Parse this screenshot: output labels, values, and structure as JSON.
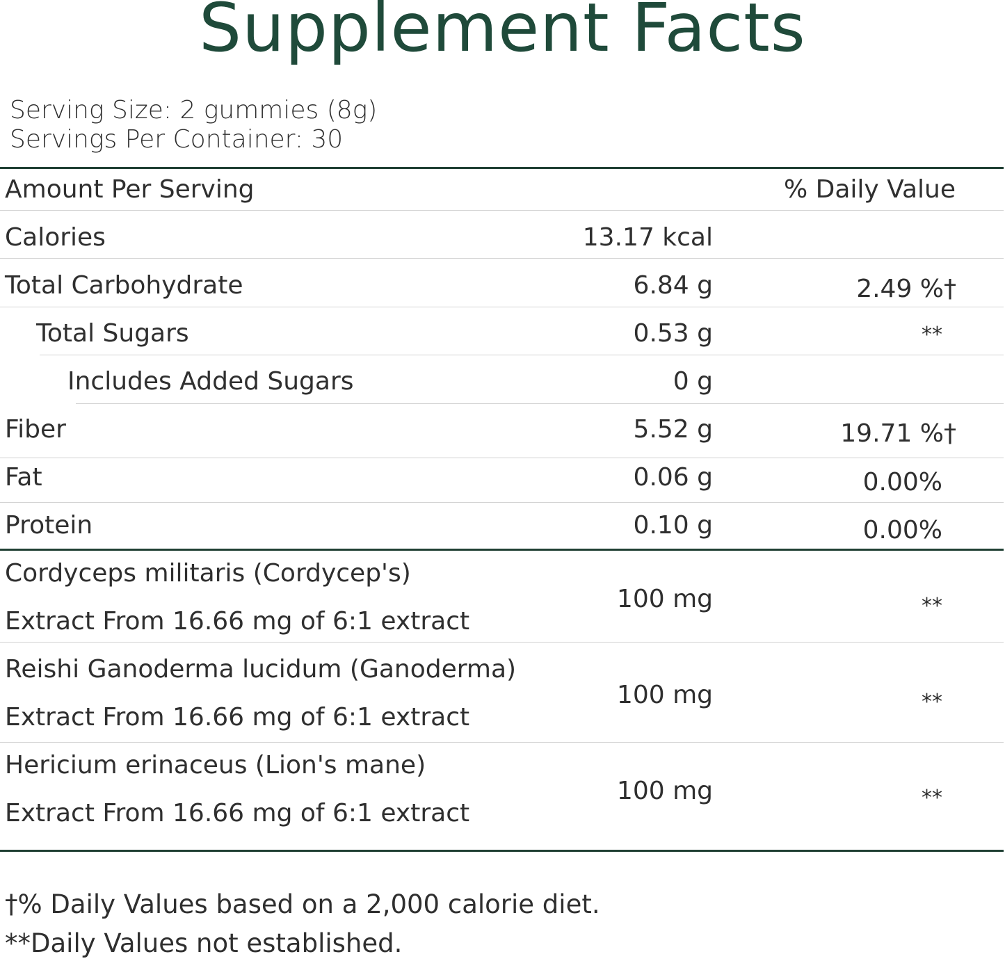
{
  "title": "Supplement Facts",
  "serving": {
    "size": "Serving Size: 2 gummies (8g)",
    "per_container": "Servings Per Container: 30"
  },
  "header": {
    "amount": "Amount Per Serving",
    "dv": "% Daily Value"
  },
  "nutrients": [
    {
      "name": "Calories",
      "amount": "13.17 kcal",
      "dv": ""
    },
    {
      "name": "Total Carbohydrate",
      "amount": "6.84 g",
      "dv": "2.49 %†"
    },
    {
      "name": "Total Sugars",
      "amount": "0.53 g",
      "dv": "**"
    },
    {
      "name": "Includes Added Sugars",
      "amount": "0 g",
      "dv": ""
    },
    {
      "name": "Fiber",
      "amount": "5.52 g",
      "dv": "19.71 %†"
    },
    {
      "name": "Fat",
      "amount": "0.06 g",
      "dv": "0.00%"
    },
    {
      "name": "Protein",
      "amount": "0.10 g",
      "dv": "0.00%"
    }
  ],
  "ingredients": [
    {
      "line1": "Cordyceps militaris (Cordycep's)",
      "line2": "Extract From 16.66 mg of 6:1 extract",
      "amount": "100 mg",
      "dv": "**"
    },
    {
      "line1": "Reishi Ganoderma lucidum (Ganoderma)",
      "line2": "Extract From 16.66 mg of 6:1 extract",
      "amount": "100 mg",
      "dv": "**"
    },
    {
      "line1": "Hericium erinaceus (Lion's mane)",
      "line2": "Extract From 16.66 mg of 6:1 extract",
      "amount": "100 mg",
      "dv": "**"
    }
  ],
  "footnotes": [
    "†% Daily Values based on a 2,000 calorie diet.",
    "**Daily Values not established."
  ],
  "colors": {
    "title": "#1f4a3a",
    "rule_thick": "#1f3f33",
    "rule_thin": "#d2d2d2",
    "text": "#2f2f2f"
  }
}
